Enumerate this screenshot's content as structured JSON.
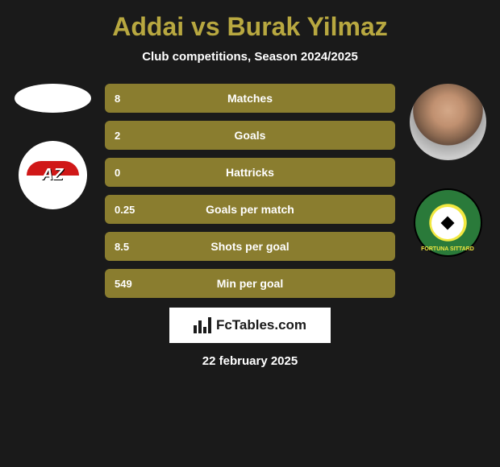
{
  "title": "Addai vs Burak Yilmaz",
  "subtitle": "Club competitions, Season 2024/2025",
  "date": "22 february 2025",
  "fctables_text": "FcTables.com",
  "colors": {
    "background": "#1a1a1a",
    "accent": "#b8a840",
    "bar": "#8a7d2f",
    "text": "#ffffff"
  },
  "stats": [
    {
      "value": "8",
      "label": "Matches"
    },
    {
      "value": "2",
      "label": "Goals"
    },
    {
      "value": "0",
      "label": "Hattricks"
    },
    {
      "value": "0.25",
      "label": "Goals per match"
    },
    {
      "value": "8.5",
      "label": "Shots per goal"
    },
    {
      "value": "549",
      "label": "Min per goal"
    }
  ],
  "player_left": {
    "name": "Addai",
    "club": "AZ",
    "club_colors": {
      "primary": "#d01818",
      "secondary": "#ffffff"
    }
  },
  "player_right": {
    "name": "Burak Yilmaz",
    "club": "Fortuna Sittard",
    "club_colors": {
      "primary": "#2a7a3a",
      "secondary": "#f2e840"
    }
  },
  "bar_styling": {
    "height": 36,
    "border_radius": 6,
    "gap": 10,
    "value_fontsize": 13,
    "label_fontsize": 14
  },
  "title_styling": {
    "fontsize": 32,
    "color": "#b8a840"
  }
}
